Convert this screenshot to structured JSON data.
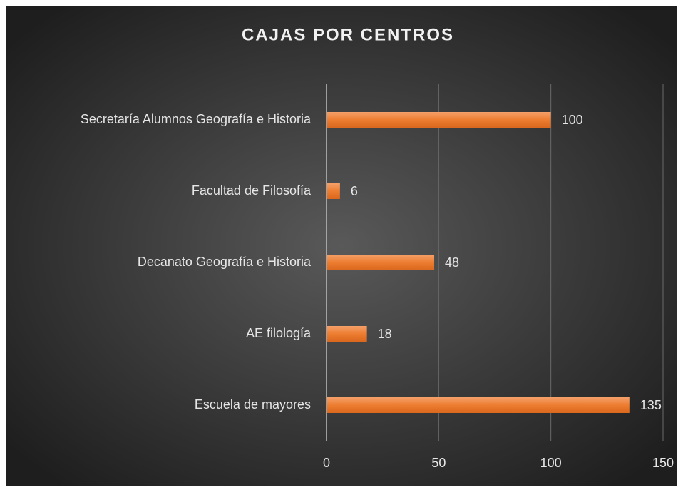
{
  "chart_data": {
    "type": "bar",
    "orientation": "horizontal",
    "title": "CAJAS POR CENTROS",
    "categories": [
      "Secretaría Alumnos Geografía e Historia",
      "Facultad de Filosofía",
      "Decanato Geografía e Historia",
      "AE filología",
      "Escuela de mayores"
    ],
    "values": [
      100,
      6,
      48,
      18,
      135
    ],
    "color": "#ed7d31",
    "xlim": [
      0,
      150
    ],
    "xticks": [
      0,
      50,
      100,
      150
    ],
    "grid": true
  }
}
